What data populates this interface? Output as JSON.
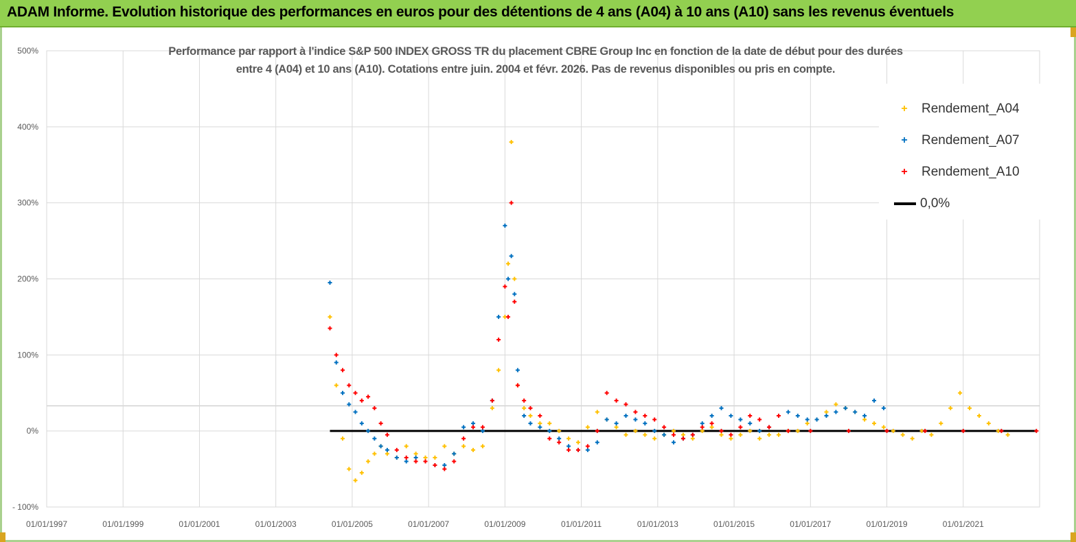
{
  "banner": {
    "title": "ADAM Informe. Evolution historique des performances en euros pour des détentions de 4 ans (A04) à 10 ans (A10) sans les revenus éventuels"
  },
  "colors": {
    "banner": "#92d050",
    "frame": "#a9d18e",
    "A04": "#ffc000",
    "A07": "#0070c0",
    "A10": "#ff0000",
    "zero": "#000000"
  },
  "chart_data": {
    "type": "scatter",
    "title_lines": [
      "Performance par rapport à l'indice S&P 500 INDEX GROSS TR  du placement CBRE Group Inc en fonction de la date de début pour des durées",
      "entre 4 (A04) et 10 ans (A10). Cotations entre juin. 2004 et févr. 2026. Pas de revenus disponibles ou pris en compte."
    ],
    "xlabel": "",
    "ylabel": "",
    "x_range": [
      "1997-01-01",
      "2023-01-01"
    ],
    "y_range": [
      -100,
      500
    ],
    "y_ticks": [
      "500%",
      "400%",
      "300%",
      "200%",
      "100%",
      "0%",
      "- 100%"
    ],
    "y_tick_values": [
      500,
      400,
      300,
      200,
      100,
      0,
      -100
    ],
    "x_ticks": [
      "01/01/1997",
      "01/01/1999",
      "01/01/2001",
      "01/01/2003",
      "01/01/2005",
      "01/01/2007",
      "01/01/2009",
      "01/01/2011",
      "01/01/2013",
      "01/01/2015",
      "01/01/2017",
      "01/01/2019",
      "01/01/2021"
    ],
    "grid": true,
    "legend_position": "top-right",
    "legend": [
      "Rendement_A04",
      "Rendement_A07",
      "Rendement_A10",
      "0,0%"
    ],
    "series": [
      {
        "name": "Rendement_A04",
        "marker": "+",
        "x": [
          "2004-06",
          "2004-08",
          "2004-10",
          "2004-12",
          "2005-02",
          "2005-04",
          "2005-06",
          "2005-08",
          "2005-10",
          "2005-12",
          "2006-03",
          "2006-06",
          "2006-09",
          "2006-12",
          "2007-03",
          "2007-06",
          "2007-09",
          "2007-12",
          "2008-03",
          "2008-06",
          "2008-09",
          "2008-11",
          "2009-01",
          "2009-02",
          "2009-03",
          "2009-04",
          "2009-05",
          "2009-07",
          "2009-09",
          "2009-12",
          "2010-03",
          "2010-06",
          "2010-09",
          "2010-12",
          "2011-03",
          "2011-06",
          "2011-09",
          "2011-12",
          "2012-03",
          "2012-06",
          "2012-09",
          "2012-12",
          "2013-03",
          "2013-06",
          "2013-09",
          "2013-12",
          "2014-03",
          "2014-06",
          "2014-09",
          "2014-12",
          "2015-03",
          "2015-06",
          "2015-09",
          "2015-12",
          "2016-03",
          "2016-06",
          "2016-09",
          "2016-12",
          "2017-03",
          "2017-06",
          "2017-09",
          "2017-12",
          "2018-03",
          "2018-06",
          "2018-09",
          "2018-12",
          "2019-03",
          "2019-06",
          "2019-09",
          "2019-12",
          "2020-03",
          "2020-06",
          "2020-09",
          "2020-12",
          "2021-03",
          "2021-06",
          "2021-09",
          "2021-12",
          "2022-03"
        ],
        "y": [
          150,
          60,
          -10,
          -50,
          -65,
          -55,
          -40,
          -30,
          -20,
          -30,
          -35,
          -20,
          -30,
          -35,
          -35,
          -20,
          -30,
          -20,
          -25,
          -20,
          30,
          80,
          150,
          220,
          380,
          200,
          60,
          30,
          20,
          10,
          10,
          0,
          -10,
          -15,
          5,
          25,
          15,
          5,
          -5,
          0,
          -5,
          -10,
          -5,
          0,
          -5,
          -10,
          0,
          5,
          -5,
          -10,
          -5,
          0,
          -10,
          -5,
          -5,
          0,
          0,
          10,
          15,
          25,
          35,
          30,
          25,
          15,
          10,
          5,
          0,
          -5,
          -10,
          0,
          -5,
          10,
          30,
          50,
          30,
          20,
          10,
          0,
          -5
        ]
      },
      {
        "name": "Rendement_A07",
        "marker": "+",
        "x": [
          "2004-06",
          "2004-08",
          "2004-10",
          "2004-12",
          "2005-02",
          "2005-04",
          "2005-06",
          "2005-08",
          "2005-10",
          "2005-12",
          "2006-03",
          "2006-06",
          "2006-09",
          "2006-12",
          "2007-03",
          "2007-06",
          "2007-09",
          "2007-12",
          "2008-03",
          "2008-06",
          "2008-09",
          "2008-11",
          "2009-01",
          "2009-02",
          "2009-03",
          "2009-04",
          "2009-05",
          "2009-07",
          "2009-09",
          "2009-12",
          "2010-03",
          "2010-06",
          "2010-09",
          "2010-12",
          "2011-03",
          "2011-06",
          "2011-09",
          "2011-12",
          "2012-03",
          "2012-06",
          "2012-09",
          "2012-12",
          "2013-03",
          "2013-06",
          "2013-09",
          "2013-12",
          "2014-03",
          "2014-06",
          "2014-09",
          "2014-12",
          "2015-03",
          "2015-06",
          "2015-09",
          "2015-12",
          "2016-03",
          "2016-06",
          "2016-09",
          "2016-12",
          "2017-03",
          "2017-06",
          "2017-09",
          "2017-12",
          "2018-03",
          "2018-06",
          "2018-09",
          "2018-12"
        ],
        "y": [
          195,
          90,
          50,
          35,
          25,
          10,
          0,
          -10,
          -20,
          -25,
          -35,
          -40,
          -35,
          -40,
          -45,
          -45,
          -30,
          5,
          10,
          0,
          40,
          150,
          270,
          200,
          230,
          180,
          80,
          20,
          10,
          5,
          0,
          -10,
          -20,
          -25,
          -25,
          -15,
          15,
          10,
          20,
          15,
          10,
          0,
          -5,
          -15,
          -10,
          -5,
          10,
          20,
          30,
          20,
          15,
          10,
          0,
          5,
          20,
          25,
          20,
          15,
          15,
          20,
          25,
          30,
          25,
          20,
          40,
          30
        ]
      },
      {
        "name": "Rendement_A10",
        "marker": "+",
        "x": [
          "2004-06",
          "2004-08",
          "2004-10",
          "2004-12",
          "2005-02",
          "2005-04",
          "2005-06",
          "2005-08",
          "2005-10",
          "2005-12",
          "2006-03",
          "2006-06",
          "2006-09",
          "2006-12",
          "2007-03",
          "2007-06",
          "2007-09",
          "2007-12",
          "2008-03",
          "2008-06",
          "2008-09",
          "2008-11",
          "2009-01",
          "2009-02",
          "2009-03",
          "2009-04",
          "2009-05",
          "2009-07",
          "2009-09",
          "2009-12",
          "2010-03",
          "2010-06",
          "2010-09",
          "2010-12",
          "2011-03",
          "2011-06",
          "2011-09",
          "2011-12",
          "2012-03",
          "2012-06",
          "2012-09",
          "2012-12",
          "2013-03",
          "2013-06",
          "2013-09",
          "2013-12",
          "2014-03",
          "2014-06",
          "2014-09",
          "2014-12",
          "2015-03",
          "2015-06",
          "2015-09",
          "2015-12",
          "2016-03",
          "2016-06",
          "2017-01",
          "2018-01",
          "2019-01",
          "2020-01",
          "2021-01",
          "2022-01",
          "2022-12"
        ],
        "y": [
          135,
          100,
          80,
          60,
          50,
          40,
          45,
          30,
          10,
          -5,
          -25,
          -35,
          -40,
          -40,
          -45,
          -50,
          -40,
          -10,
          5,
          5,
          40,
          120,
          190,
          150,
          300,
          170,
          60,
          40,
          30,
          20,
          -10,
          -15,
          -25,
          -25,
          -20,
          0,
          50,
          40,
          35,
          25,
          20,
          15,
          5,
          -5,
          -10,
          -5,
          5,
          10,
          0,
          -5,
          5,
          20,
          15,
          5,
          20,
          0,
          0,
          0,
          0,
          0,
          0,
          0,
          0
        ]
      },
      {
        "name": "0,0%",
        "type": "line",
        "x": [
          "2004-06",
          "2022-12"
        ],
        "y": [
          0,
          0
        ]
      }
    ]
  }
}
